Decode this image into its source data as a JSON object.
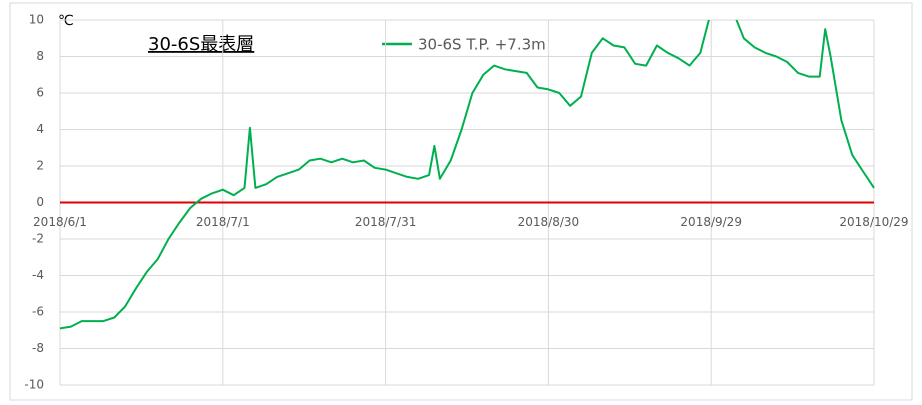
{
  "chart_data": {
    "type": "line",
    "title": "30-6S最表層",
    "y_unit": "℃",
    "x": [
      "2018/6/1",
      "2018/6/3",
      "2018/6/5",
      "2018/6/7",
      "2018/6/9",
      "2018/6/11",
      "2018/6/13",
      "2018/6/15",
      "2018/6/17",
      "2018/6/19",
      "2018/6/21",
      "2018/6/23",
      "2018/6/25",
      "2018/6/27",
      "2018/6/29",
      "2018/7/1",
      "2018/7/3",
      "2018/7/5",
      "2018/7/6",
      "2018/7/7",
      "2018/7/9",
      "2018/7/11",
      "2018/7/13",
      "2018/7/15",
      "2018/7/17",
      "2018/7/19",
      "2018/7/21",
      "2018/7/23",
      "2018/7/25",
      "2018/7/27",
      "2018/7/29",
      "2018/7/31",
      "2018/8/2",
      "2018/8/4",
      "2018/8/6",
      "2018/8/8",
      "2018/8/9",
      "2018/8/10",
      "2018/8/12",
      "2018/8/14",
      "2018/8/16",
      "2018/8/18",
      "2018/8/20",
      "2018/8/22",
      "2018/8/24",
      "2018/8/26",
      "2018/8/28",
      "2018/8/30",
      "2018/9/1",
      "2018/9/3",
      "2018/9/5",
      "2018/9/7",
      "2018/9/9",
      "2018/9/11",
      "2018/9/13",
      "2018/9/15",
      "2018/9/17",
      "2018/9/19",
      "2018/9/21",
      "2018/9/23",
      "2018/9/25",
      "2018/9/27",
      "2018/9/29",
      "2018/10/1",
      "2018/10/3",
      "2018/10/5",
      "2018/10/7",
      "2018/10/9",
      "2018/10/11",
      "2018/10/13",
      "2018/10/15",
      "2018/10/17",
      "2018/10/19",
      "2018/10/20",
      "2018/10/21",
      "2018/10/23",
      "2018/10/25",
      "2018/10/27",
      "2018/10/29"
    ],
    "series": [
      {
        "name": "30-6S T.P. +7.3m",
        "color": "#00b050",
        "values": [
          -6.9,
          -6.8,
          -6.5,
          -6.5,
          -6.5,
          -6.3,
          -5.7,
          -4.7,
          -3.8,
          -3.1,
          -2.0,
          -1.1,
          -0.3,
          0.2,
          0.5,
          0.7,
          0.4,
          0.8,
          4.1,
          0.8,
          1.0,
          1.4,
          1.6,
          1.8,
          2.3,
          2.4,
          2.2,
          2.4,
          2.2,
          2.3,
          1.9,
          1.8,
          1.6,
          1.4,
          1.3,
          1.5,
          3.1,
          1.3,
          2.3,
          4.0,
          6.0,
          7.0,
          7.5,
          7.3,
          7.2,
          7.1,
          6.3,
          6.2,
          6.0,
          5.3,
          5.8,
          8.2,
          9.0,
          8.6,
          8.5,
          7.6,
          7.5,
          8.6,
          8.2,
          7.9,
          7.5,
          8.2,
          10.5,
          11,
          10.5,
          9.0,
          8.5,
          8.2,
          8.0,
          7.7,
          7.1,
          6.9,
          6.9,
          9.5,
          8.0,
          4.5,
          2.6,
          1.7,
          0.8
        ]
      }
    ],
    "xticks": [
      "2018/6/1",
      "2018/7/1",
      "2018/7/31",
      "2018/8/30",
      "2018/9/29",
      "2018/10/29"
    ],
    "ylim": [
      -10,
      10
    ],
    "yticks": [
      -10,
      -8,
      -6,
      -4,
      -2,
      0,
      2,
      4,
      6,
      8,
      10
    ],
    "reference_line": {
      "value": 0,
      "color": "#e00000"
    },
    "grid": true,
    "legend": "top"
  }
}
